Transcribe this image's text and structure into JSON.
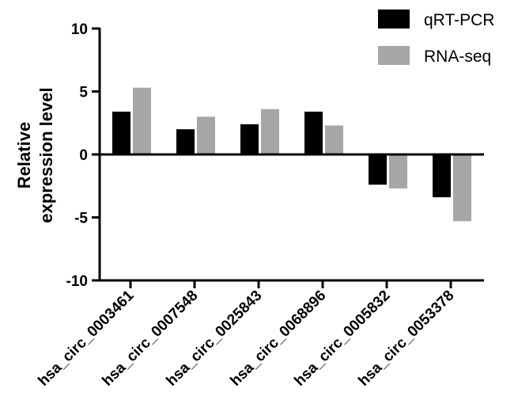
{
  "chart_data": {
    "type": "bar",
    "title": "",
    "xlabel": "",
    "ylabel_lines": [
      "Relative",
      "expression level"
    ],
    "ylim": [
      -10,
      10
    ],
    "yticks": [
      "10",
      "5",
      "0",
      "-5",
      "-10"
    ],
    "ytick_values": [
      10,
      5,
      0,
      -5,
      -10
    ],
    "categories": [
      "hsa_circ_0003461",
      "hsa_circ_0007548",
      "hsa_circ_0025843",
      "hsa_circ_0068896",
      "hsa_circ_0005832",
      "hsa_circ_0053378"
    ],
    "series": [
      {
        "name": "qRT-PCR",
        "color": "#000000",
        "values": [
          3.4,
          2.0,
          2.4,
          3.4,
          -2.4,
          -3.4
        ]
      },
      {
        "name": "RNA-seq",
        "color": "#a6a6a6",
        "values": [
          5.3,
          3.0,
          3.6,
          2.3,
          -2.7,
          -5.3
        ]
      }
    ],
    "legend_position": "top-right",
    "grid": false
  }
}
